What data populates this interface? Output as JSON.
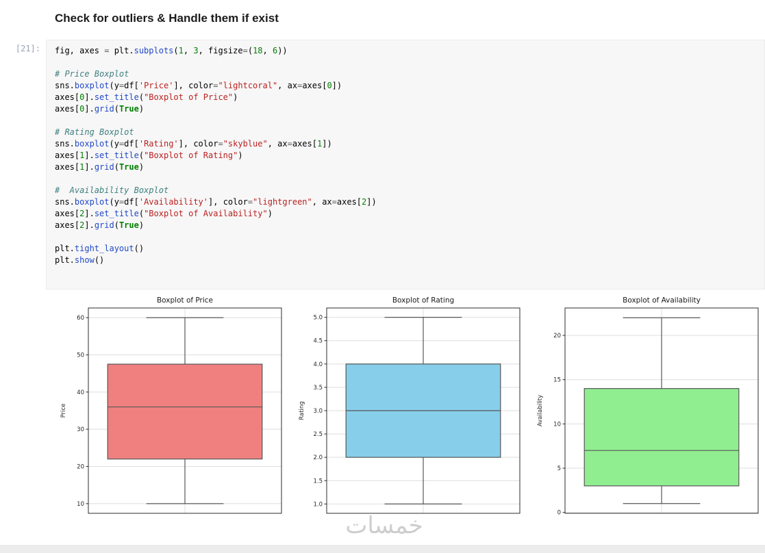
{
  "page": {
    "heading": "Check for outliers & Handle them if exist",
    "watermark": "خمسات"
  },
  "cell": {
    "prompt": "[21]:",
    "code_lines": [
      [
        [
          "p",
          "fig, axes "
        ],
        [
          "o",
          "= "
        ],
        [
          "p",
          "plt."
        ],
        [
          "f",
          "subplots"
        ],
        [
          "p",
          "("
        ],
        [
          "n",
          "1"
        ],
        [
          "p",
          ", "
        ],
        [
          "n",
          "3"
        ],
        [
          "p",
          ", figsize"
        ],
        [
          "o",
          "="
        ],
        [
          "p",
          "("
        ],
        [
          "n",
          "18"
        ],
        [
          "p",
          ", "
        ],
        [
          "n",
          "6"
        ],
        [
          "p",
          "))"
        ]
      ],
      [],
      [
        [
          "c",
          "# Price Boxplot"
        ]
      ],
      [
        [
          "p",
          "sns."
        ],
        [
          "f",
          "boxplot"
        ],
        [
          "p",
          "(y"
        ],
        [
          "o",
          "="
        ],
        [
          "p",
          "df["
        ],
        [
          "s",
          "'Price'"
        ],
        [
          "p",
          "], color"
        ],
        [
          "o",
          "="
        ],
        [
          "s",
          "\"lightcoral\""
        ],
        [
          "p",
          ", ax"
        ],
        [
          "o",
          "="
        ],
        [
          "p",
          "axes["
        ],
        [
          "n",
          "0"
        ],
        [
          "p",
          "])"
        ]
      ],
      [
        [
          "p",
          "axes["
        ],
        [
          "n",
          "0"
        ],
        [
          "p",
          "]."
        ],
        [
          "f",
          "set_title"
        ],
        [
          "p",
          "("
        ],
        [
          "s",
          "\"Boxplot of Price\""
        ],
        [
          "p",
          ")"
        ]
      ],
      [
        [
          "p",
          "axes["
        ],
        [
          "n",
          "0"
        ],
        [
          "p",
          "]."
        ],
        [
          "f",
          "grid"
        ],
        [
          "p",
          "("
        ],
        [
          "k",
          "True"
        ],
        [
          "p",
          ")"
        ]
      ],
      [],
      [
        [
          "c",
          "# Rating Boxplot"
        ]
      ],
      [
        [
          "p",
          "sns."
        ],
        [
          "f",
          "boxplot"
        ],
        [
          "p",
          "(y"
        ],
        [
          "o",
          "="
        ],
        [
          "p",
          "df["
        ],
        [
          "s",
          "'Rating'"
        ],
        [
          "p",
          "], color"
        ],
        [
          "o",
          "="
        ],
        [
          "s",
          "\"skyblue\""
        ],
        [
          "p",
          ", ax"
        ],
        [
          "o",
          "="
        ],
        [
          "p",
          "axes["
        ],
        [
          "n",
          "1"
        ],
        [
          "p",
          "])"
        ]
      ],
      [
        [
          "p",
          "axes["
        ],
        [
          "n",
          "1"
        ],
        [
          "p",
          "]."
        ],
        [
          "f",
          "set_title"
        ],
        [
          "p",
          "("
        ],
        [
          "s",
          "\"Boxplot of Rating\""
        ],
        [
          "p",
          ")"
        ]
      ],
      [
        [
          "p",
          "axes["
        ],
        [
          "n",
          "1"
        ],
        [
          "p",
          "]."
        ],
        [
          "f",
          "grid"
        ],
        [
          "p",
          "("
        ],
        [
          "k",
          "True"
        ],
        [
          "p",
          ")"
        ]
      ],
      [],
      [
        [
          "c",
          "#  Availability Boxplot"
        ]
      ],
      [
        [
          "p",
          "sns."
        ],
        [
          "f",
          "boxplot"
        ],
        [
          "p",
          "(y"
        ],
        [
          "o",
          "="
        ],
        [
          "p",
          "df["
        ],
        [
          "s",
          "'Availability'"
        ],
        [
          "p",
          "], color"
        ],
        [
          "o",
          "="
        ],
        [
          "s",
          "\"lightgreen\""
        ],
        [
          "p",
          ", ax"
        ],
        [
          "o",
          "="
        ],
        [
          "p",
          "axes["
        ],
        [
          "n",
          "2"
        ],
        [
          "p",
          "])"
        ]
      ],
      [
        [
          "p",
          "axes["
        ],
        [
          "n",
          "2"
        ],
        [
          "p",
          "]."
        ],
        [
          "f",
          "set_title"
        ],
        [
          "p",
          "("
        ],
        [
          "s",
          "\"Boxplot of Availability\""
        ],
        [
          "p",
          ")"
        ]
      ],
      [
        [
          "p",
          "axes["
        ],
        [
          "n",
          "2"
        ],
        [
          "p",
          "]."
        ],
        [
          "f",
          "grid"
        ],
        [
          "p",
          "("
        ],
        [
          "k",
          "True"
        ],
        [
          "p",
          ")"
        ]
      ],
      [],
      [
        [
          "p",
          "plt."
        ],
        [
          "f",
          "tight_layout"
        ],
        [
          "p",
          "()"
        ]
      ],
      [
        [
          "p",
          "plt."
        ],
        [
          "f",
          "show"
        ],
        [
          "p",
          "()"
        ]
      ]
    ]
  },
  "chart_data": [
    {
      "type": "boxplot",
      "title": "Boxplot of Price",
      "ylabel": "Price",
      "yticks": [
        10,
        20,
        30,
        40,
        50,
        60
      ],
      "ytick_labels": [
        "10",
        "20",
        "30",
        "40",
        "50",
        "60"
      ],
      "ylim": [
        7.4,
        62.6
      ],
      "stats": {
        "whisker_low": 10,
        "q1": 22,
        "median": 36,
        "q3": 47.5,
        "whisker_high": 60
      },
      "fill": "#F08080",
      "fill_name": "lightcoral",
      "edge": "#565656",
      "grid": true
    },
    {
      "type": "boxplot",
      "title": "Boxplot of Rating",
      "ylabel": "Rating",
      "yticks": [
        1.0,
        1.5,
        2.0,
        2.5,
        3.0,
        3.5,
        4.0,
        4.5,
        5.0
      ],
      "ytick_labels": [
        "1.0",
        "1.5",
        "2.0",
        "2.5",
        "3.0",
        "3.5",
        "4.0",
        "4.5",
        "5.0"
      ],
      "ylim": [
        0.8,
        5.2
      ],
      "stats": {
        "whisker_low": 1.0,
        "q1": 2.0,
        "median": 3.0,
        "q3": 4.0,
        "whisker_high": 5.0
      },
      "fill": "#87CEEB",
      "fill_name": "skyblue",
      "edge": "#565656",
      "grid": true
    },
    {
      "type": "boxplot",
      "title": "Boxplot of Availability",
      "ylabel": "Availability",
      "yticks": [
        0,
        5,
        10,
        15,
        20
      ],
      "ytick_labels": [
        "0",
        "5",
        "10",
        "15",
        "20"
      ],
      "ylim": [
        -0.1,
        23.1
      ],
      "stats": {
        "whisker_low": 1,
        "q1": 3,
        "median": 7,
        "q3": 14,
        "whisker_high": 22
      },
      "fill": "#90EE90",
      "fill_name": "lightgreen",
      "edge": "#565656",
      "grid": true
    }
  ]
}
